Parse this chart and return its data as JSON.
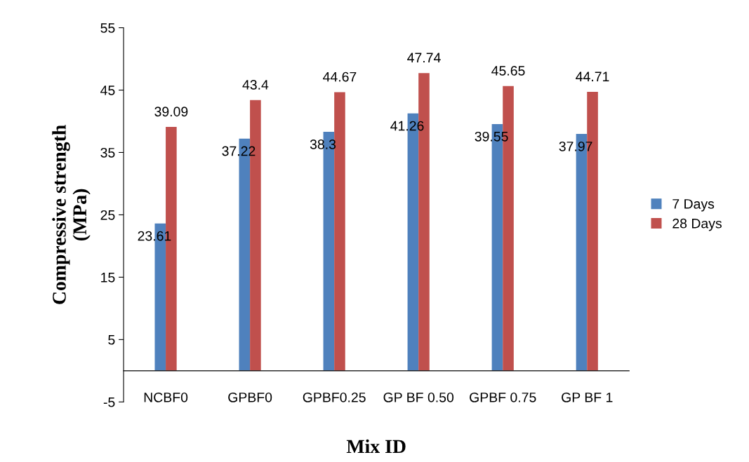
{
  "chart_data": {
    "type": "bar",
    "xlabel": "Mix ID",
    "ylabel": "Compressive strength\n(MPa)",
    "categories": [
      "NCBF0",
      "GPBF0",
      "GPBF0.25",
      "GP BF 0.50",
      "GPBF 0.75",
      "GP BF 1"
    ],
    "series": [
      {
        "name": "7 Days",
        "color": "#4f81bd",
        "values": [
          23.61,
          37.22,
          38.3,
          41.26,
          39.55,
          37.97
        ]
      },
      {
        "name": "28 Days",
        "color": "#c0504d",
        "values": [
          39.09,
          43.4,
          44.67,
          47.74,
          45.65,
          44.71
        ]
      }
    ],
    "ylim": [
      -5,
      55
    ],
    "yticks": [
      -5,
      5,
      15,
      25,
      35,
      45,
      55
    ],
    "grid": false,
    "legend": "right",
    "data_labels": true
  }
}
